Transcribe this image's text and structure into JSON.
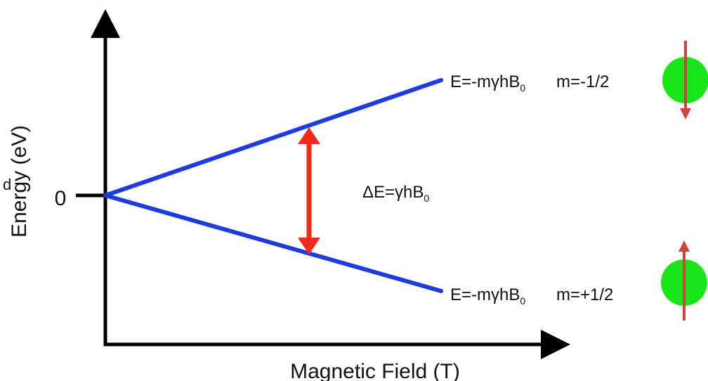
{
  "diagram": {
    "y_axis_label": "Energy (eV)",
    "x_axis_label": "Magnetic Field (T)",
    "origin_tick_label": "0",
    "clipped_fragment": "d",
    "delta_label": {
      "prefix": "ΔE=γhB",
      "subscript": "0"
    },
    "upper_level": {
      "formula_prefix": "E=-mγhB",
      "subscript": "0",
      "m_label": "m=-1/2",
      "spin": "down"
    },
    "lower_level": {
      "formula_prefix": "E=-mγhB",
      "subscript": "0",
      "m_label": "m=+1/2",
      "spin": "up"
    },
    "colors": {
      "axes": "#000000",
      "levels": "#1e3be0",
      "transition_arrow": "#f12a1c",
      "spin_ball": "#19e619",
      "spin_arrow": "#c8473a"
    }
  }
}
